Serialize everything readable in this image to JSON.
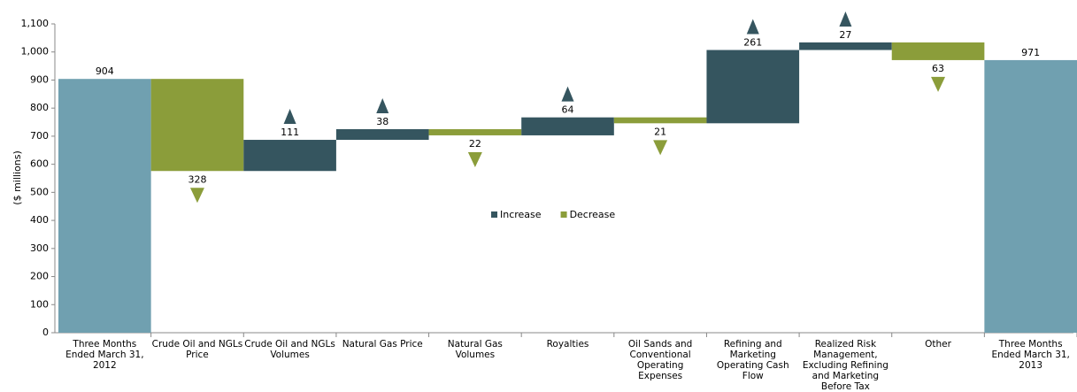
{
  "chart_data": {
    "type": "waterfall",
    "y_label": "($ millions)",
    "categories": [
      "Three Months Ended March 31, 2012",
      "Crude Oil and NGLs Price",
      "Crude Oil and NGLs Volumes",
      "Natural Gas Price",
      "Natural Gas Volumes",
      "Royalties",
      "Oil Sands and Conventional Operating Expenses",
      "Refining and Marketing Operating Cash Flow",
      "Realized Risk Management, Excluding Refining and Marketing Before Tax",
      "Other",
      "Three Months Ended March 31, 2013"
    ],
    "values": [
      904,
      -328,
      111,
      38,
      -22,
      64,
      -21,
      261,
      27,
      -63,
      971
    ],
    "value_labels": [
      "904",
      "328",
      "111",
      "38",
      "22",
      "64",
      "21",
      "261",
      "27",
      "63",
      "971"
    ],
    "legend": [
      {
        "name": "Increase",
        "color": "#35555f"
      },
      {
        "name": "Decrease",
        "color": "#8b9d3a"
      }
    ],
    "total_color": "#70a0b0",
    "ylim": [
      0,
      1100
    ],
    "yticks": [
      0,
      100,
      200,
      300,
      400,
      500,
      600,
      700,
      800,
      900,
      {
        "value": 1000,
        "label": "1,000"
      },
      {
        "value": 1100,
        "label": "1,100"
      }
    ]
  }
}
